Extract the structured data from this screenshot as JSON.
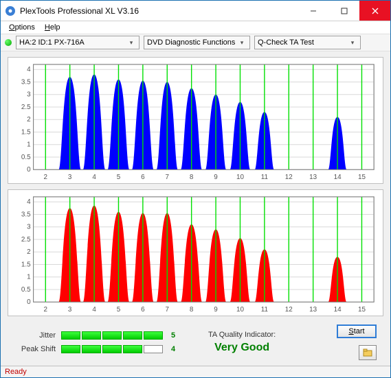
{
  "window": {
    "title": "PlexTools Professional XL V3.16"
  },
  "menu": {
    "options": "Options",
    "help": "Help"
  },
  "toolbar": {
    "device": "HA:2 ID:1   PX-716A",
    "category": "DVD Diagnostic Functions",
    "test": "Q-Check TA Test"
  },
  "charts": {
    "xlim": [
      1.5,
      15.5
    ],
    "xticks": [
      2,
      3,
      4,
      5,
      6,
      7,
      8,
      9,
      10,
      11,
      12,
      13,
      14,
      15
    ],
    "ylim": [
      0,
      4.2
    ],
    "yticks": [
      0,
      0.5,
      1,
      1.5,
      2,
      2.5,
      3,
      3.5,
      4
    ],
    "grid_color": "#d8d8d8",
    "vline_color": "#00e000",
    "background": "#ffffff",
    "axis_color": "#808080",
    "top": {
      "fill": "#0000ff",
      "peaks": [
        {
          "c": 3,
          "h": 3.7,
          "w": 0.46
        },
        {
          "c": 4,
          "h": 3.8,
          "w": 0.46
        },
        {
          "c": 5,
          "h": 3.6,
          "w": 0.45
        },
        {
          "c": 6,
          "h": 3.55,
          "w": 0.45
        },
        {
          "c": 7,
          "h": 3.5,
          "w": 0.44
        },
        {
          "c": 8,
          "h": 3.25,
          "w": 0.44
        },
        {
          "c": 9,
          "h": 3.0,
          "w": 0.43
        },
        {
          "c": 10,
          "h": 2.7,
          "w": 0.42
        },
        {
          "c": 11,
          "h": 2.3,
          "w": 0.4
        },
        {
          "c": 14,
          "h": 2.1,
          "w": 0.38
        }
      ]
    },
    "bottom": {
      "fill": "#ff0000",
      "peaks": [
        {
          "c": 3,
          "h": 3.75,
          "w": 0.46
        },
        {
          "c": 4,
          "h": 3.85,
          "w": 0.46
        },
        {
          "c": 5,
          "h": 3.6,
          "w": 0.45
        },
        {
          "c": 6,
          "h": 3.55,
          "w": 0.45
        },
        {
          "c": 7,
          "h": 3.55,
          "w": 0.44
        },
        {
          "c": 8,
          "h": 3.1,
          "w": 0.44
        },
        {
          "c": 9,
          "h": 2.9,
          "w": 0.43
        },
        {
          "c": 10,
          "h": 2.55,
          "w": 0.42
        },
        {
          "c": 11,
          "h": 2.1,
          "w": 0.4
        },
        {
          "c": 14,
          "h": 1.8,
          "w": 0.38
        }
      ]
    }
  },
  "meters": {
    "jitter": {
      "label": "Jitter",
      "filled": 5,
      "total": 5,
      "value": "5"
    },
    "peakshift": {
      "label": "Peak Shift",
      "filled": 4,
      "total": 5,
      "value": "4"
    }
  },
  "quality": {
    "label": "TA Quality Indicator:",
    "value": "Very Good"
  },
  "buttons": {
    "start": "Start"
  },
  "status": {
    "text": "Ready"
  }
}
